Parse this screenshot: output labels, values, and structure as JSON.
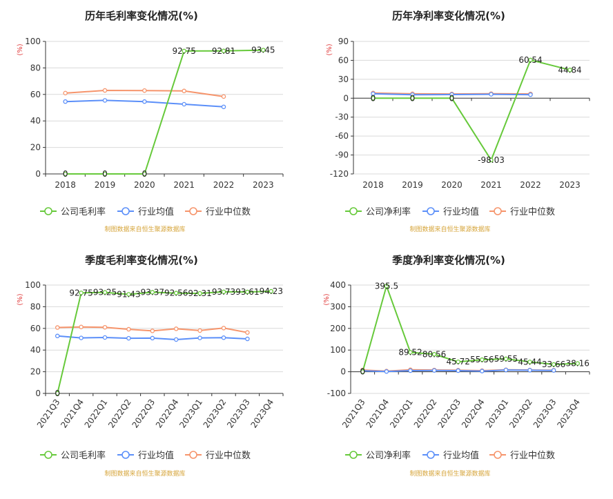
{
  "colors": {
    "company": "#66c93a",
    "industry_avg": "#5b8ff9",
    "industry_median": "#f6946b",
    "grid": "#d9d9d9",
    "axis": "#333333",
    "unit": "#e03a3a",
    "source": "#d6a53b"
  },
  "chart_data": [
    {
      "type": "line",
      "title": "历年毛利率变化情况(%)",
      "ylabel": "(%)",
      "categories": [
        "2018",
        "2019",
        "2020",
        "2021",
        "2022",
        "2023"
      ],
      "ylim": [
        0,
        100
      ],
      "yticks": [
        0,
        20,
        40,
        60,
        80,
        100
      ],
      "grid": true,
      "legend_placement": "bottom",
      "series": [
        {
          "name": "公司毛利率",
          "values": [
            0,
            0,
            0,
            92.75,
            92.81,
            93.45
          ],
          "labels": [
            "0",
            "0",
            "0",
            "92.75",
            "92.81",
            "93.45"
          ]
        },
        {
          "name": "行业均值",
          "values": [
            54.6,
            55.5,
            54.6,
            52.6,
            50.6,
            null
          ]
        },
        {
          "name": "行业中位数",
          "values": [
            61.0,
            63.0,
            62.9,
            62.6,
            58.4,
            null
          ]
        }
      ],
      "source": "制图数据来自恒生聚源数据库"
    },
    {
      "type": "line",
      "title": "历年净利率变化情况(%)",
      "ylabel": "(%)",
      "categories": [
        "2018",
        "2019",
        "2020",
        "2021",
        "2022",
        "2023"
      ],
      "ylim": [
        -120,
        90
      ],
      "yticks": [
        -120,
        -90,
        -60,
        -30,
        0,
        30,
        60,
        90
      ],
      "grid": true,
      "legend_placement": "bottom",
      "series": [
        {
          "name": "公司净利率",
          "values": [
            0,
            0,
            0,
            -98.03,
            60.54,
            44.84
          ],
          "labels": [
            "0",
            "0",
            "0",
            "-98.03",
            "60.54",
            "44.84"
          ]
        },
        {
          "name": "行业均值",
          "values": [
            7.0,
            5.5,
            5.8,
            6.2,
            5.6,
            null
          ]
        },
        {
          "name": "行业中位数",
          "values": [
            8.2,
            7.0,
            6.8,
            7.2,
            6.8,
            null
          ]
        }
      ],
      "source": "制图数据来自恒生聚源数据库"
    },
    {
      "type": "line",
      "title": "季度毛利率变化情况(%)",
      "ylabel": "(%)",
      "categories": [
        "2021Q3",
        "2021Q4",
        "2022Q1",
        "2022Q2",
        "2022Q3",
        "2022Q4",
        "2023Q1",
        "2023Q2",
        "2023Q3",
        "2023Q4"
      ],
      "ylim": [
        0,
        100
      ],
      "yticks": [
        0,
        20,
        40,
        60,
        80,
        100
      ],
      "grid": true,
      "legend_placement": "bottom",
      "series": [
        {
          "name": "公司毛利率",
          "values": [
            0,
            92.75,
            93.25,
            91.43,
            93.37,
            92.56,
            92.31,
            93.73,
            93.61,
            94.23
          ],
          "labels": [
            "0",
            "92.75",
            "93.25",
            "91.43",
            "93.37",
            "92.56",
            "92.31",
            "93.73",
            "93.61",
            "94.23"
          ]
        },
        {
          "name": "行业均值",
          "values": [
            53.0,
            51.2,
            51.6,
            50.9,
            51.0,
            49.7,
            51.2,
            51.4,
            50.3,
            null
          ]
        },
        {
          "name": "行业中位数",
          "values": [
            60.8,
            61.3,
            61.0,
            59.2,
            57.7,
            59.6,
            58.0,
            60.3,
            56.2,
            null
          ]
        }
      ],
      "source": "制图数据来自恒生聚源数据库"
    },
    {
      "type": "line",
      "title": "季度净利率变化情况(%)",
      "ylabel": "(%)",
      "categories": [
        "2021Q3",
        "2021Q4",
        "2022Q1",
        "2022Q2",
        "2022Q3",
        "2022Q4",
        "2023Q1",
        "2023Q2",
        "2023Q3",
        "2023Q4"
      ],
      "ylim": [
        -100,
        400
      ],
      "yticks": [
        -100,
        0,
        100,
        200,
        300,
        400
      ],
      "grid": true,
      "legend_placement": "bottom",
      "series": [
        {
          "name": "公司净利率",
          "values": [
            0,
            395.5,
            89.52,
            80.56,
            45.72,
            55.56,
            59.55,
            45.44,
            33.66,
            38.16
          ],
          "labels": [
            "0",
            "395.5",
            "89.52",
            "80.56",
            "45.72",
            "55.56",
            "59.55",
            "45.44",
            "33.66",
            "38.16"
          ]
        },
        {
          "name": "行业均值",
          "values": [
            4,
            1,
            5,
            6,
            5,
            3,
            8,
            7,
            6,
            null
          ]
        },
        {
          "name": "行业中位数",
          "values": [
            8,
            3,
            9,
            8,
            7,
            5,
            9,
            8,
            7,
            null
          ]
        }
      ],
      "source": "制图数据来自恒生聚源数据库"
    }
  ]
}
